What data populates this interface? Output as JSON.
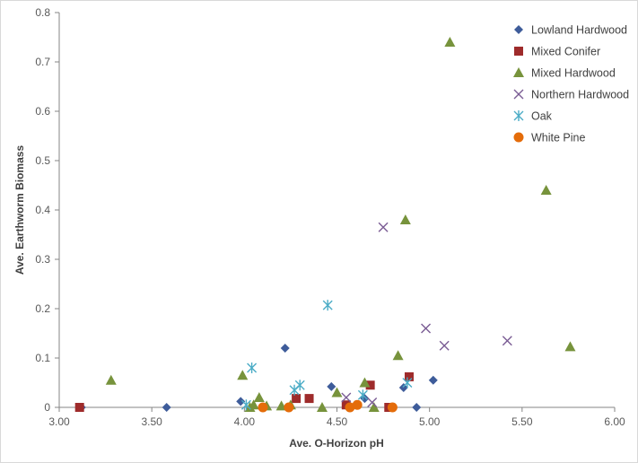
{
  "chart_data": {
    "type": "scatter",
    "title": "",
    "xlabel": "Ave. O-Horizon pH",
    "ylabel": "Ave. Earthworm Biomass",
    "xlim": [
      3.0,
      6.0
    ],
    "ylim": [
      0,
      0.8
    ],
    "x_ticks": [
      "3.00",
      "3.50",
      "4.00",
      "4.50",
      "5.00",
      "5.50",
      "6.00"
    ],
    "y_ticks": [
      "0",
      "0.1",
      "0.2",
      "0.3",
      "0.4",
      "0.5",
      "0.6",
      "0.7",
      "0.8"
    ],
    "x_tick_values": [
      3.0,
      3.5,
      4.0,
      4.5,
      5.0,
      5.5,
      6.0
    ],
    "y_tick_values": [
      0,
      0.1,
      0.2,
      0.3,
      0.4,
      0.5,
      0.6,
      0.7,
      0.8
    ],
    "grid": false,
    "legend_position": "top-right",
    "series": [
      {
        "name": "Lowland Hardwood",
        "marker": "diamond",
        "color": "#3E5C9A",
        "points": [
          [
            3.12,
            0
          ],
          [
            3.58,
            0
          ],
          [
            3.98,
            0.012
          ],
          [
            4.22,
            0.12
          ],
          [
            4.47,
            0.042
          ],
          [
            4.65,
            0.018
          ],
          [
            4.86,
            0.04
          ],
          [
            4.93,
            0
          ],
          [
            5.02,
            0.055
          ]
        ]
      },
      {
        "name": "Mixed Conifer",
        "marker": "square",
        "color": "#9E2B2B",
        "points": [
          [
            3.11,
            0
          ],
          [
            4.28,
            0.018
          ],
          [
            4.35,
            0.018
          ],
          [
            4.55,
            0.005
          ],
          [
            4.68,
            0.045
          ],
          [
            4.78,
            0
          ],
          [
            4.89,
            0.062
          ]
        ]
      },
      {
        "name": "Mixed Hardwood",
        "marker": "triangle",
        "color": "#77933C",
        "points": [
          [
            3.28,
            0.055
          ],
          [
            3.99,
            0.065
          ],
          [
            4.03,
            0
          ],
          [
            4.05,
            0.005
          ],
          [
            4.08,
            0.02
          ],
          [
            4.12,
            0.003
          ],
          [
            4.2,
            0.003
          ],
          [
            4.25,
            0.005
          ],
          [
            4.42,
            0
          ],
          [
            4.5,
            0.03
          ],
          [
            4.65,
            0.05
          ],
          [
            4.7,
            0
          ],
          [
            4.83,
            0.105
          ],
          [
            4.87,
            0.38
          ],
          [
            5.11,
            0.74
          ],
          [
            5.63,
            0.44
          ],
          [
            5.76,
            0.123
          ]
        ]
      },
      {
        "name": "Northern Hardwood",
        "marker": "x",
        "color": "#7A5C94",
        "points": [
          [
            4.55,
            0.02
          ],
          [
            4.69,
            0.01
          ],
          [
            4.75,
            0.365
          ],
          [
            4.98,
            0.16
          ],
          [
            5.08,
            0.125
          ],
          [
            5.42,
            0.135
          ]
        ]
      },
      {
        "name": "Oak",
        "marker": "star",
        "color": "#4BACC6",
        "points": [
          [
            4.01,
            0.005
          ],
          [
            4.04,
            0.08
          ],
          [
            4.27,
            0.035
          ],
          [
            4.3,
            0.045
          ],
          [
            4.45,
            0.207
          ],
          [
            4.64,
            0.025
          ],
          [
            4.88,
            0.05
          ]
        ]
      },
      {
        "name": "White Pine",
        "marker": "circle",
        "color": "#E46C0A",
        "points": [
          [
            4.1,
            0
          ],
          [
            4.24,
            0
          ],
          [
            4.57,
            0
          ],
          [
            4.61,
            0.005
          ],
          [
            4.8,
            0
          ]
        ]
      }
    ]
  }
}
